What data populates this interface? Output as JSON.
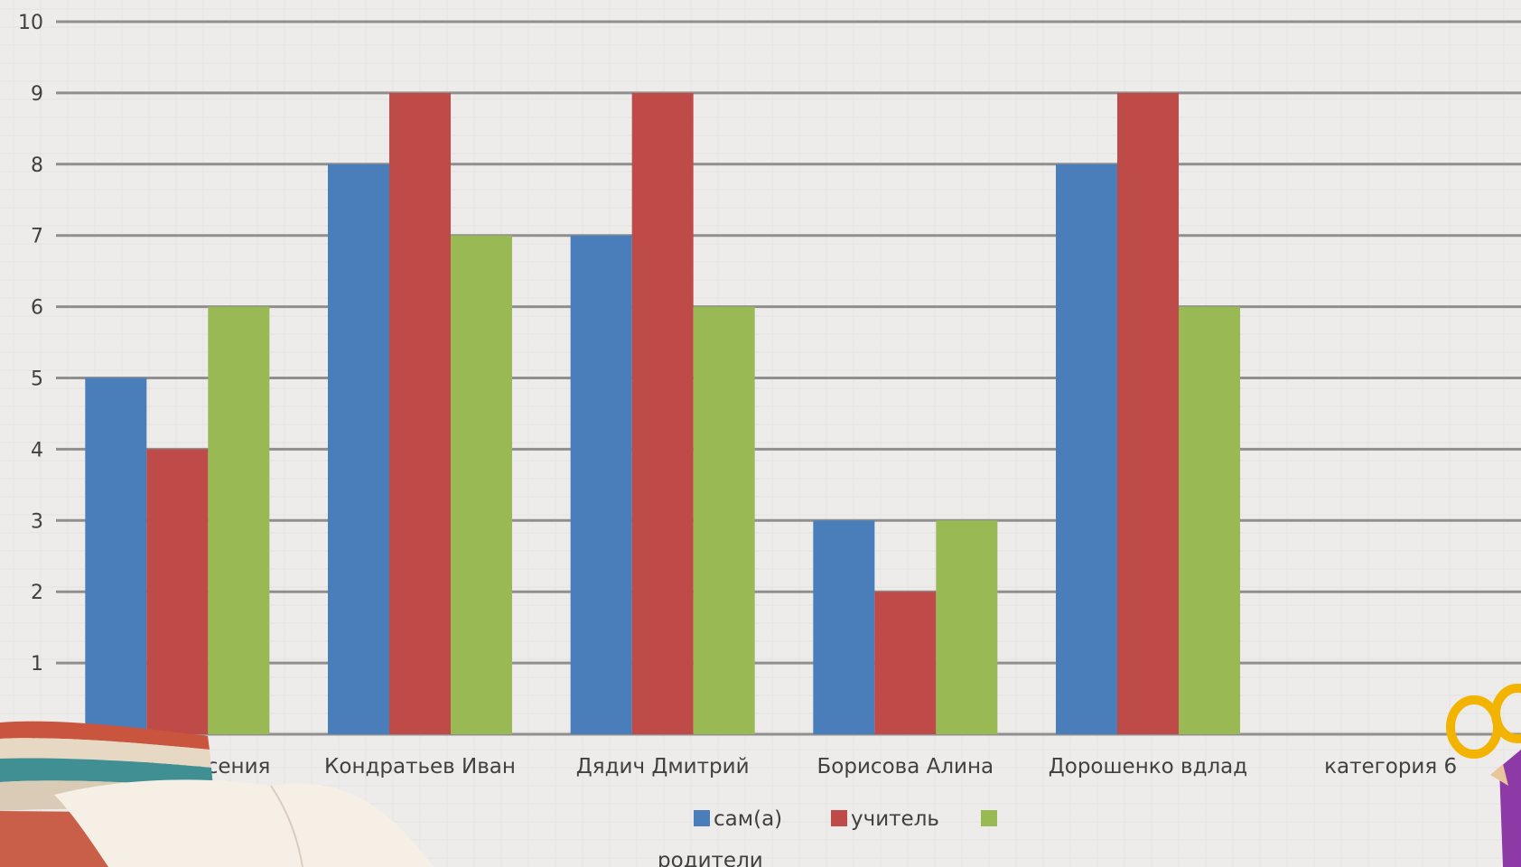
{
  "chart_data": {
    "type": "bar",
    "categories": [
      "ромасько ксения",
      "Кондратьев Иван",
      "Дядич Дмитрий",
      "Борисова Алина",
      "Дорошенко вдлад",
      "категория 6"
    ],
    "series": [
      {
        "name": "сам(а)",
        "color": "#4a7ebb",
        "values": [
          5,
          8,
          7,
          3,
          8,
          null
        ]
      },
      {
        "name": "учитель",
        "color": "#be4b48",
        "values": [
          4,
          9,
          9,
          2,
          9,
          null
        ]
      },
      {
        "name": "родители",
        "color": "#98b954",
        "values": [
          6,
          7,
          6,
          3,
          6,
          null
        ]
      }
    ],
    "ylim": [
      0,
      10
    ],
    "yticks": [
      "0",
      "1",
      "2",
      "3",
      "4",
      "5",
      "6",
      "7",
      "8",
      "9",
      "10"
    ],
    "grid": true,
    "legend_position": "bottom",
    "title": "",
    "xlabel": "",
    "ylabel": ""
  }
}
